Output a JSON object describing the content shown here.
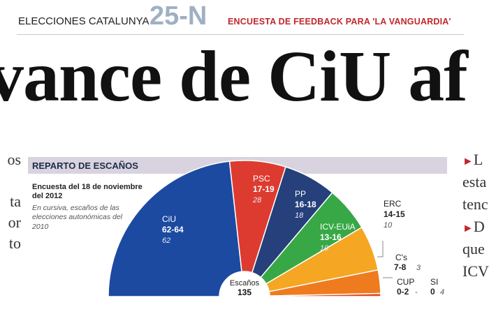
{
  "header": {
    "kicker": "ELECCIONES CATALUNYA",
    "date": "25-N",
    "poll": "ENCUESTA DE FEEDBACK PARA 'LA VANGUARDIA'"
  },
  "headline": "vance de CiU af",
  "left_col": [
    "os",
    "",
    "ta",
    "or",
    "to"
  ],
  "right_col": {
    "para1": [
      "L",
      "esta",
      "tenc"
    ],
    "para2": [
      "D",
      "que",
      "ICV"
    ]
  },
  "infographic": {
    "band_title": "REPARTO DE ESCAÑOS",
    "note_survey": "Encuesta del 18 de noviembre del 2012",
    "note_italic": "En cursiva, escaños de las elecciones autonómicas del 2010",
    "center_label": "Escaños",
    "center_total": "135"
  },
  "chart_data": {
    "type": "pie",
    "subtype": "parliament-semicircle",
    "title": "REPARTO DE ESCAÑOS",
    "total_seats": 135,
    "series": [
      {
        "name": "CiU",
        "range": "62-64",
        "mid": 63,
        "prev": "62",
        "color": "#1c4aa0"
      },
      {
        "name": "PSC",
        "range": "17-19",
        "mid": 18,
        "prev": "28",
        "color": "#dd3b30"
      },
      {
        "name": "PP",
        "range": "16-18",
        "mid": 17,
        "prev": "18",
        "color": "#25407a"
      },
      {
        "name": "ICV-EUiA",
        "range": "13-16",
        "mid": 14.5,
        "prev": "10",
        "color": "#37a845"
      },
      {
        "name": "ERC",
        "range": "14-15",
        "mid": 14.5,
        "prev": "10",
        "color": "#f5a623"
      },
      {
        "name": "C's",
        "range": "7-8",
        "mid": 7.5,
        "prev": "3",
        "color": "#ef7b1f"
      },
      {
        "name": "CUP",
        "range": "0-2",
        "mid": 1,
        "prev": "-",
        "color": "#e14a1f"
      },
      {
        "name": "SI",
        "range": "0",
        "mid": 0,
        "prev": "4",
        "color": "#9aa7b5"
      }
    ]
  }
}
